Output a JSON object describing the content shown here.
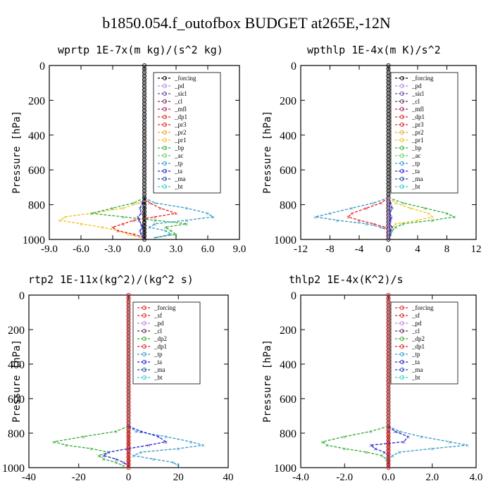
{
  "page_title": "b1850.054.f_outofbox  BUDGET at265E,-12N",
  "chart_data": [
    {
      "type": "line",
      "title": "wprtp  1E-7x(m kg)/(s^2 kg)",
      "ylabel": "Pressure [hPa]",
      "ylim": [
        1000,
        0
      ],
      "yticks": [
        0,
        200,
        400,
        600,
        800,
        1000
      ],
      "xlim": [
        -9,
        9
      ],
      "xticks": [
        -9,
        -6,
        -3,
        0,
        3,
        6,
        9
      ],
      "xtick_labels": [
        "-9.0",
        "-6.0",
        "-3.0",
        "0.0",
        "3.0",
        "6.0",
        "9.0"
      ],
      "legend": [
        "_forcing",
        "_pd",
        "_sicl",
        "_cl",
        "_mfl",
        "_dp1",
        "_pr3",
        "_pr2",
        "_pr1",
        "_bp",
        "_ac",
        "_tp",
        "_ta",
        "_ma",
        "_bt"
      ],
      "legend_position": "top-right",
      "pressure": [
        760,
        790,
        820,
        850,
        870,
        890,
        910,
        930,
        950,
        970,
        990
      ],
      "series": [
        {
          "name": "_pr1",
          "color": "#f0c020",
          "x": [
            0,
            -0.5,
            -2,
            -5,
            -7.5,
            -8,
            -6,
            -4,
            -2.5,
            -1.5,
            -0.3
          ]
        },
        {
          "name": "_bp",
          "color": "#33aa33",
          "x": [
            0,
            -1,
            -3,
            -5,
            -2,
            1,
            4,
            2,
            2.5,
            3,
            1
          ]
        },
        {
          "name": "_tp",
          "color": "#3399cc",
          "x": [
            0,
            1,
            4,
            6,
            6.5,
            4,
            1,
            0.5,
            2,
            2.5,
            1
          ]
        },
        {
          "name": "_pr3",
          "color": "#e02020",
          "x": [
            0,
            0.5,
            1.5,
            3,
            1,
            -1,
            -2,
            -3,
            -2.5,
            -1,
            0
          ]
        },
        {
          "name": "_ta",
          "color": "#2222cc",
          "x": [
            0,
            -0.2,
            -0.4,
            -0.3,
            -0.6,
            -0.5,
            -0.3,
            -0.2,
            -0.4,
            -0.3,
            -0.1
          ]
        },
        {
          "name": "_forcing",
          "color": "#000000",
          "x": [
            0,
            0,
            0,
            0,
            0,
            0,
            0,
            0,
            0,
            0,
            0
          ]
        }
      ]
    },
    {
      "type": "line",
      "title": "wpthlp  1E-4x(m K)/s^2",
      "ylabel": "Pressure [hPa]",
      "ylim": [
        1000,
        0
      ],
      "yticks": [
        0,
        200,
        400,
        600,
        800,
        1000
      ],
      "xlim": [
        -12,
        12
      ],
      "xticks": [
        -12,
        -8,
        -4,
        0,
        4,
        8,
        12
      ],
      "xtick_labels": [
        "-12",
        "-8",
        "-4",
        "0",
        "4",
        "8",
        "12"
      ],
      "legend": [
        "_forcing",
        "_pd",
        "_sicl",
        "_cl",
        "_mfl",
        "_dp1",
        "_pr3",
        "_pr2",
        "_pr1",
        "_bp",
        "_ac",
        "_tp",
        "_ta",
        "_ma",
        "_bt"
      ],
      "legend_position": "top-right",
      "pressure": [
        760,
        790,
        820,
        850,
        870,
        890,
        910,
        930,
        950,
        970,
        990
      ],
      "series": [
        {
          "name": "_bp",
          "color": "#33aa33",
          "x": [
            0,
            2,
            5,
            8,
            9,
            6,
            2,
            1,
            0.5,
            0.3,
            0
          ]
        },
        {
          "name": "_pr1",
          "color": "#f0c020",
          "x": [
            0,
            1,
            3,
            5.5,
            6,
            4,
            1,
            0.5,
            0.3,
            0.2,
            0
          ]
        },
        {
          "name": "_tp",
          "color": "#3399cc",
          "x": [
            0,
            -2,
            -5,
            -8,
            -10,
            -7,
            -3,
            -1,
            0,
            0.3,
            0
          ]
        },
        {
          "name": "_pr3",
          "color": "#e02020",
          "x": [
            0,
            -1,
            -3,
            -5,
            -5.5,
            -4,
            -2,
            -0.5,
            0,
            0,
            0
          ]
        },
        {
          "name": "_ta",
          "color": "#2222cc",
          "x": [
            0,
            0.3,
            0.5,
            0.2,
            0.4,
            0.3,
            0.2,
            0.5,
            0.3,
            0.2,
            0
          ]
        },
        {
          "name": "_forcing",
          "color": "#c080e0",
          "x": [
            0,
            0,
            0,
            0,
            0,
            0,
            0,
            0,
            0,
            0,
            0
          ]
        }
      ]
    },
    {
      "type": "line",
      "title": "rtp2  1E-11x(kg^2)/(kg^2 s)",
      "ylabel": "Pressure [hPa]",
      "ylim": [
        1000,
        0
      ],
      "yticks": [
        0,
        200,
        400,
        600,
        800,
        1000
      ],
      "xlim": [
        -40,
        40
      ],
      "xticks": [
        -40,
        -20,
        0,
        20,
        40
      ],
      "xtick_labels": [
        "-40",
        "-20",
        "0",
        "20",
        "40"
      ],
      "legend": [
        "_forcing",
        "_sf",
        "_pd",
        "_cl",
        "_dp2",
        "_dp1",
        "_tp",
        "_ta",
        "_ma",
        "_bt"
      ],
      "legend_position": "top-right",
      "pressure": [
        760,
        790,
        820,
        850,
        870,
        890,
        910,
        930,
        950,
        970,
        990
      ],
      "series": [
        {
          "name": "_dp2",
          "color": "#33aa33",
          "x": [
            0,
            -5,
            -18,
            -30,
            -25,
            -15,
            -8,
            -12,
            -10,
            -5,
            -2
          ]
        },
        {
          "name": "_tp",
          "color": "#3399cc",
          "x": [
            0,
            3,
            15,
            25,
            30,
            20,
            5,
            2,
            10,
            18,
            20
          ]
        },
        {
          "name": "_ta",
          "color": "#2222cc",
          "x": [
            0,
            5,
            12,
            15,
            8,
            0,
            -8,
            -10,
            -5,
            -2,
            0
          ]
        },
        {
          "name": "_forcing",
          "color": "#e02020",
          "x": [
            0,
            0,
            0,
            0,
            0,
            0,
            0,
            0,
            0,
            0,
            0
          ]
        }
      ]
    },
    {
      "type": "line",
      "title": "thlp2  1E-4x(K^2)/s",
      "ylabel": "Pressure [hPa]",
      "ylim": [
        1000,
        0
      ],
      "yticks": [
        0,
        200,
        400,
        600,
        800,
        1000
      ],
      "xlim": [
        -4,
        4
      ],
      "xticks": [
        -4,
        -2,
        0,
        2,
        4
      ],
      "xtick_labels": [
        "-4.0",
        "-2.0",
        "0.0",
        "2.0",
        "4.0"
      ],
      "legend": [
        "_forcing",
        "_sf",
        "_pd",
        "_cl",
        "_dp2",
        "_dp1",
        "_tp",
        "_ta",
        "_ma",
        "_bt"
      ],
      "legend_position": "top-right",
      "pressure": [
        760,
        790,
        820,
        850,
        870,
        890,
        910,
        930,
        950,
        970,
        990
      ],
      "series": [
        {
          "name": "_dp2",
          "color": "#33aa33",
          "x": [
            0,
            -0.8,
            -2,
            -3,
            -2.8,
            -2,
            -1,
            -0.3,
            -0.1,
            0,
            0
          ]
        },
        {
          "name": "_tp",
          "color": "#3399cc",
          "x": [
            0,
            0.5,
            1.5,
            2.8,
            3.6,
            2,
            0.5,
            0.2,
            0,
            0,
            0
          ]
        },
        {
          "name": "_ta",
          "color": "#2222cc",
          "x": [
            0,
            0.3,
            0.9,
            0.7,
            -0.8,
            -0.6,
            -0.2,
            0,
            0,
            0,
            0
          ]
        },
        {
          "name": "_forcing",
          "color": "#e02020",
          "x": [
            0,
            0,
            0,
            0,
            0,
            0,
            0,
            0,
            0,
            0,
            0
          ]
        }
      ]
    }
  ]
}
